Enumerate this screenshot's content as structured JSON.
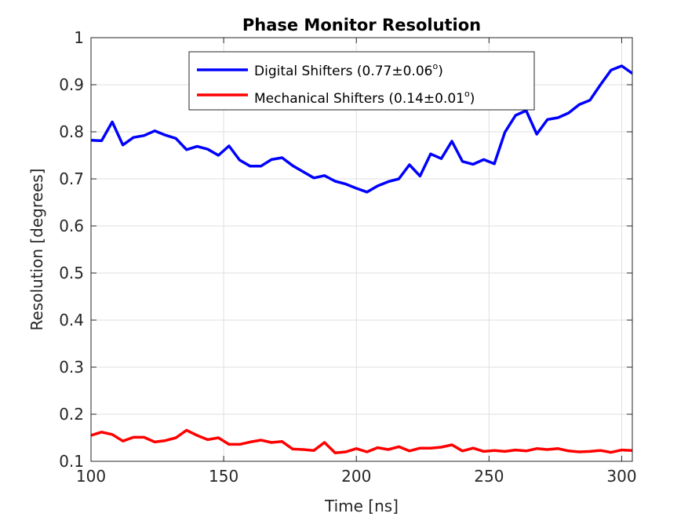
{
  "chart_data": {
    "type": "line",
    "title": "Phase Monitor Resolution",
    "xlabel": "Time [ns]",
    "ylabel": "Resolution [degrees]",
    "xlim": [
      100,
      304
    ],
    "ylim": [
      0.1,
      1.0
    ],
    "xticks": [
      100,
      150,
      200,
      250,
      300
    ],
    "xtick_labels": [
      "100",
      "150",
      "200",
      "250",
      "300"
    ],
    "yticks": [
      0.1,
      0.2,
      0.3,
      0.4,
      0.5,
      0.6,
      0.7,
      0.8,
      0.9,
      1.0
    ],
    "ytick_labels": [
      "0.1",
      "0.2",
      "0.3",
      "0.4",
      "0.5",
      "0.6",
      "0.7",
      "0.8",
      "0.9",
      "1"
    ],
    "grid": true,
    "legend_position": "top-center",
    "series": [
      {
        "name": "Digital Shifters (0.77±0.06",
        "name_superscript": "o",
        "name_suffix": ")",
        "color": "#0000ff",
        "x": [
          100,
          104,
          108,
          112,
          116,
          120,
          124,
          128,
          132,
          136,
          140,
          144,
          148,
          152,
          156,
          160,
          164,
          168,
          172,
          176,
          180,
          184,
          188,
          192,
          196,
          200,
          204,
          208,
          212,
          216,
          220,
          224,
          228,
          232,
          236,
          240,
          244,
          248,
          252,
          256,
          260,
          264,
          268,
          272,
          276,
          280,
          284,
          288,
          292,
          296,
          300,
          304
        ],
        "y": [
          0.782,
          0.781,
          0.821,
          0.772,
          0.788,
          0.792,
          0.802,
          0.793,
          0.786,
          0.762,
          0.769,
          0.763,
          0.75,
          0.77,
          0.74,
          0.727,
          0.727,
          0.741,
          0.745,
          0.728,
          0.715,
          0.702,
          0.707,
          0.695,
          0.689,
          0.68,
          0.672,
          0.685,
          0.694,
          0.7,
          0.73,
          0.706,
          0.753,
          0.743,
          0.78,
          0.737,
          0.731,
          0.741,
          0.732,
          0.799,
          0.835,
          0.845,
          0.795,
          0.826,
          0.83,
          0.84,
          0.858,
          0.867,
          0.9,
          0.931,
          0.94,
          0.924
        ]
      },
      {
        "name": "Mechanical Shifters (0.14±0.01",
        "name_superscript": "o",
        "name_suffix": ")",
        "color": "#ff0000",
        "x": [
          100,
          104,
          108,
          112,
          116,
          120,
          124,
          128,
          132,
          136,
          140,
          144,
          148,
          152,
          156,
          160,
          164,
          168,
          172,
          176,
          180,
          184,
          188,
          192,
          196,
          200,
          204,
          208,
          212,
          216,
          220,
          224,
          228,
          232,
          236,
          240,
          244,
          248,
          252,
          256,
          260,
          264,
          268,
          272,
          276,
          280,
          284,
          288,
          292,
          296,
          300,
          304
        ],
        "y": [
          0.155,
          0.162,
          0.157,
          0.143,
          0.151,
          0.151,
          0.141,
          0.144,
          0.15,
          0.166,
          0.155,
          0.146,
          0.15,
          0.136,
          0.136,
          0.141,
          0.145,
          0.14,
          0.142,
          0.126,
          0.125,
          0.123,
          0.14,
          0.118,
          0.12,
          0.127,
          0.12,
          0.129,
          0.125,
          0.131,
          0.122,
          0.128,
          0.128,
          0.13,
          0.135,
          0.122,
          0.128,
          0.121,
          0.123,
          0.121,
          0.124,
          0.122,
          0.127,
          0.125,
          0.127,
          0.122,
          0.12,
          0.121,
          0.123,
          0.119,
          0.124,
          0.123
        ]
      }
    ]
  },
  "colors": {
    "axis": "#262626",
    "grid": "#dfdfdf",
    "background": "#ffffff"
  }
}
